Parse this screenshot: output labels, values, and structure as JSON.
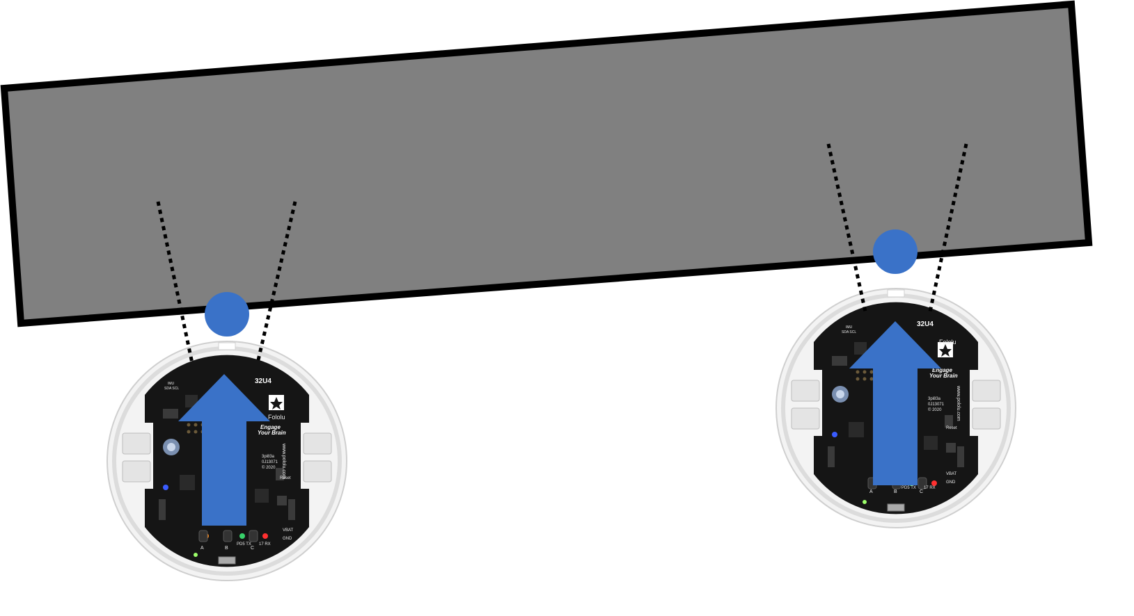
{
  "colors": {
    "background": "#ffffff",
    "wall_fill": "#808080",
    "wall_outline": "#000000",
    "sensor_ray": "#000000",
    "contact_marker": "#3a72c8",
    "heading_arrow": "#3a72c8",
    "robot_shell": "#f4f4f4",
    "robot_board": "#151515"
  },
  "wall": {
    "type": "rotated-rectangle",
    "label": ""
  },
  "robots": [
    {
      "id": "left-robot",
      "board": {
        "model": "32U4",
        "brand": "Fololu",
        "slogan_line1": "Engage",
        "slogan_line2": "Your Brain",
        "website": "www.pololu.com",
        "part_line1": "3pi83a",
        "part_line2": "0J13071",
        "part_line3": "© 2020",
        "btn_a": "A",
        "btn_b": "B",
        "btn_c": "C",
        "reset": "Reset",
        "vbat": "VBAT",
        "gnd": "GND",
        "pd5tx": "PD5 TX",
        "rx": "17 RX",
        "imu": "IMU",
        "sda": "SDA SCL"
      },
      "heading_icon": "up-arrow-icon",
      "contact_icon": "contact-circle-icon"
    },
    {
      "id": "right-robot",
      "board": {
        "model": "32U4",
        "brand": "Fololu",
        "slogan_line1": "Engage",
        "slogan_line2": "Your Brain",
        "website": "www.pololu.com",
        "part_line1": "3pi83a",
        "part_line2": "0J13071",
        "part_line3": "© 2020",
        "btn_a": "A",
        "btn_b": "B",
        "btn_c": "C",
        "reset": "Reset",
        "vbat": "VBAT",
        "gnd": "GND",
        "pd5tx": "PD5 TX",
        "rx": "17 RX",
        "imu": "IMU",
        "sda": "SDA SCL"
      },
      "heading_icon": "up-arrow-icon",
      "contact_icon": "contact-circle-icon"
    }
  ]
}
